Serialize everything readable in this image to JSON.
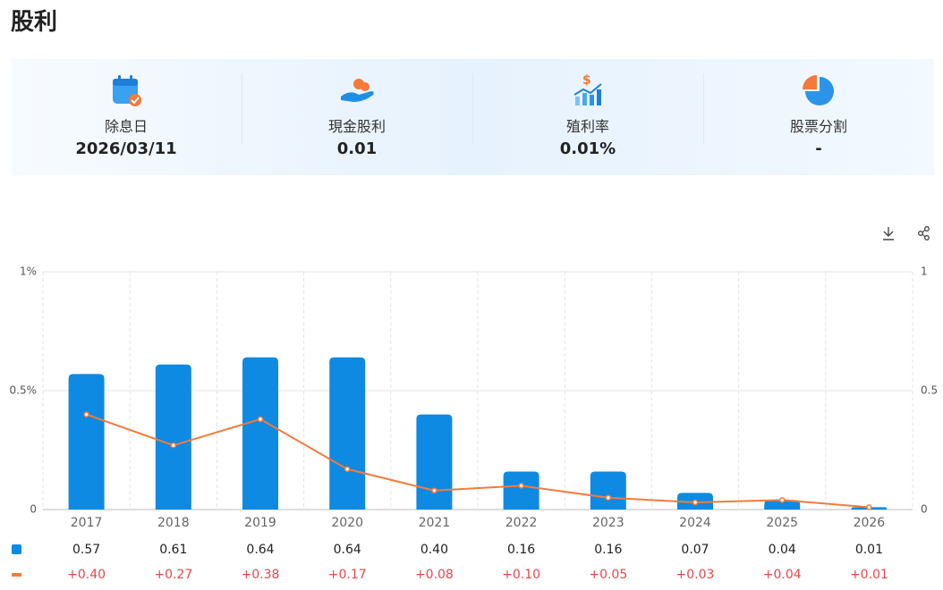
{
  "header": {
    "title": "股利"
  },
  "summary": [
    {
      "label": "除息日",
      "value": "2026/03/11"
    },
    {
      "label": "現金股利",
      "value": "0.01"
    },
    {
      "label": "殖利率",
      "value": "0.01%"
    },
    {
      "label": "股票分割",
      "value": "-"
    }
  ],
  "chart_data": {
    "type": "bar",
    "categories": [
      "2017",
      "2018",
      "2019",
      "2020",
      "2021",
      "2022",
      "2023",
      "2024",
      "2025",
      "2026"
    ],
    "series": [
      {
        "type": "bar",
        "color": "#0f8ae2",
        "values": [
          0.57,
          0.61,
          0.64,
          0.64,
          0.4,
          0.16,
          0.16,
          0.07,
          0.04,
          0.01
        ],
        "value_labels": [
          "0.57",
          "0.61",
          "0.64",
          "0.64",
          "0.40",
          "0.16",
          "0.16",
          "0.07",
          "0.04",
          "0.01"
        ]
      },
      {
        "type": "line",
        "axis": "y2",
        "color": "#f47a3a",
        "values": [
          0.4,
          0.27,
          0.38,
          0.17,
          0.08,
          0.1,
          0.05,
          0.03,
          0.04,
          0.01
        ],
        "value_labels": [
          "+0.40",
          "+0.27",
          "+0.38",
          "+0.17",
          "+0.08",
          "+0.10",
          "+0.05",
          "+0.03",
          "+0.04",
          "+0.01"
        ]
      }
    ],
    "ylim": [
      0,
      1
    ],
    "yticks": [
      0,
      {
        "value": 0.5,
        "label": "0.5%"
      },
      {
        "value": 1,
        "label": "1%"
      }
    ],
    "y2lim": [
      0,
      1
    ],
    "y2ticks": [
      0,
      0.5,
      1
    ],
    "grid": true
  }
}
